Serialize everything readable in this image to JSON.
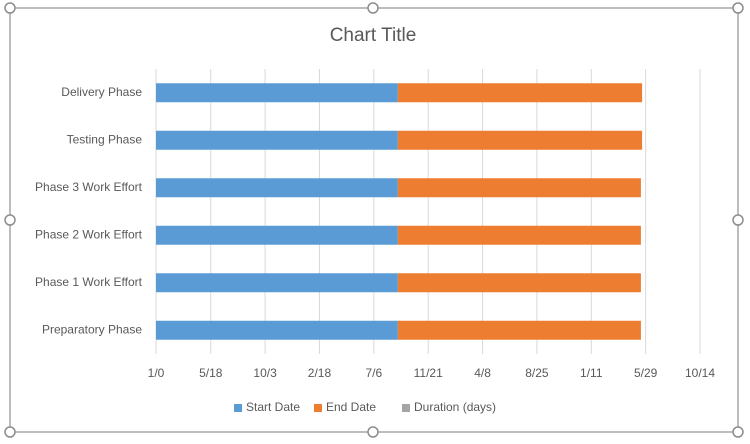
{
  "chart_data": {
    "type": "stacked_bar_horizontal",
    "title": "Chart Title",
    "categories": [
      "Preparatory Phase",
      "Phase 1 Work Effort",
      "Phase 2 Work Effort",
      "Phase 3 Work Effort",
      "Testing Phase",
      "Delivery Phase"
    ],
    "series": [
      {
        "name": "Start Date",
        "color": "#5b9bd5",
        "values": [
          614,
          614,
          614,
          614,
          614,
          614
        ]
      },
      {
        "name": "End Date",
        "color": "#ed7d31",
        "values": [
          617,
          617,
          617,
          617,
          620,
          620
        ]
      },
      {
        "name": "Duration (days)",
        "color": "#a5a5a5",
        "values": [
          0,
          0,
          0,
          0,
          0,
          0
        ]
      }
    ],
    "xlim": [
      0,
      1381
    ],
    "xticks": [
      {
        "value": 0,
        "label": "1/0"
      },
      {
        "value": 139,
        "label": "5/18"
      },
      {
        "value": 277,
        "label": "10/3"
      },
      {
        "value": 415,
        "label": "2/18"
      },
      {
        "value": 553,
        "label": "7/6"
      },
      {
        "value": 691,
        "label": "11/21"
      },
      {
        "value": 829,
        "label": "4/8"
      },
      {
        "value": 967,
        "label": "8/25"
      },
      {
        "value": 1105,
        "label": "1/11"
      },
      {
        "value": 1243,
        "label": "5/29"
      },
      {
        "value": 1381,
        "label": "10/14"
      }
    ],
    "grid": true,
    "legend": "bottom"
  }
}
